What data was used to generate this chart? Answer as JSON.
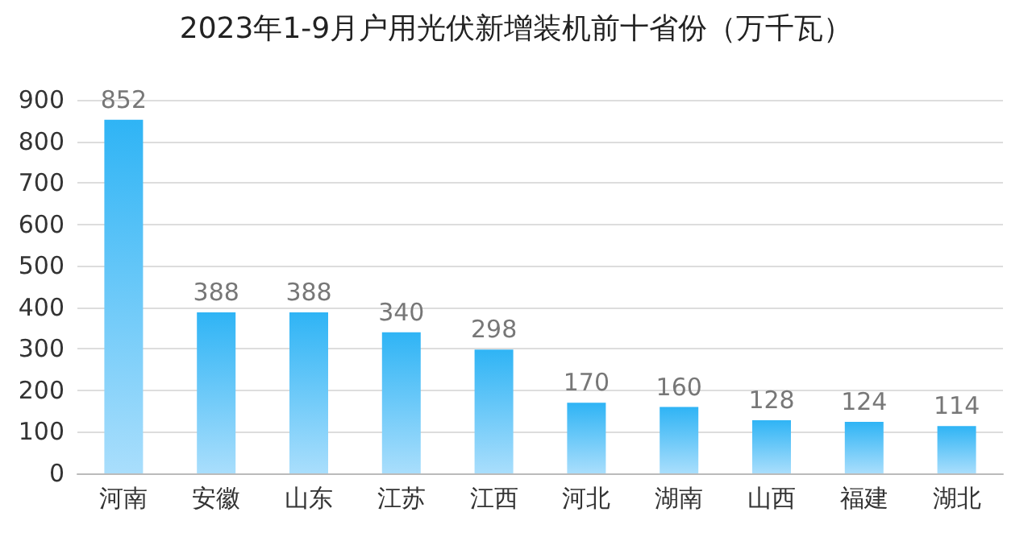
{
  "chart_data": {
    "type": "bar",
    "title": "2023年1-9月户用光伏新增装机前十省份（万千瓦）",
    "categories": [
      "河南",
      "安徽",
      "山东",
      "江苏",
      "江西",
      "河北",
      "湖南",
      "山西",
      "福建",
      "湖北"
    ],
    "values": [
      852,
      388,
      388,
      340,
      298,
      170,
      160,
      128,
      124,
      114
    ],
    "color": "#2fb4f5",
    "ylim": [
      0,
      900
    ],
    "yticks": [
      0,
      100,
      200,
      300,
      400,
      500,
      600,
      700,
      800,
      900
    ],
    "grid": "y",
    "data_labels": true
  }
}
